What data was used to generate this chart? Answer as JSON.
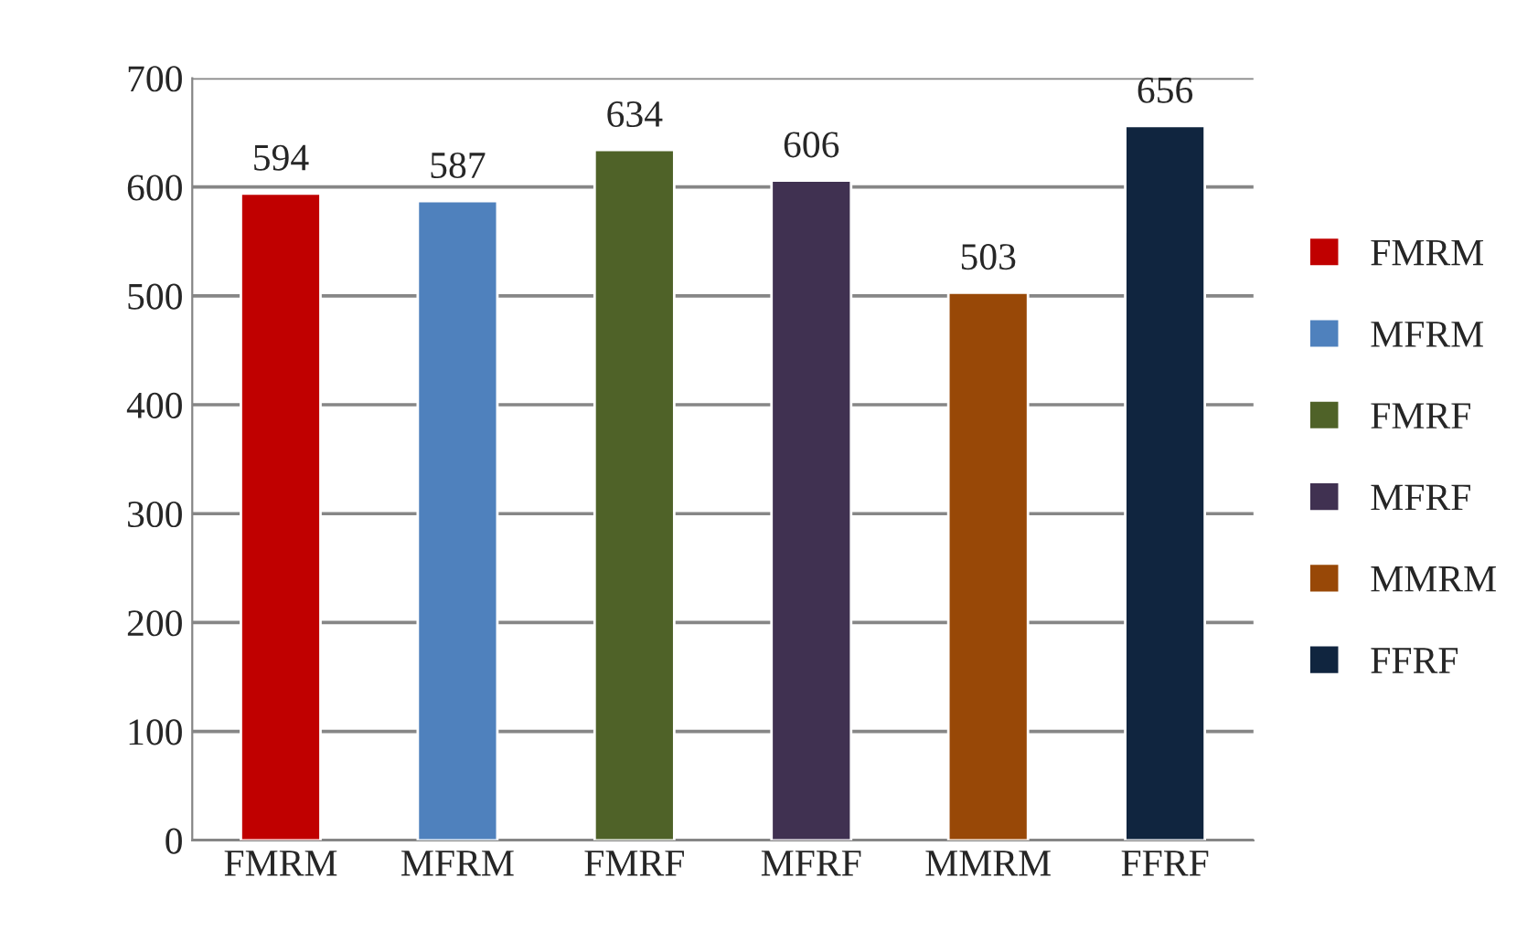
{
  "chart_data": {
    "type": "bar",
    "categories": [
      "FMRM",
      "MFRM",
      "FMRF",
      "MFRF",
      "MMRM",
      "FFRF"
    ],
    "series": [
      {
        "name": "FMRM",
        "color": "#c00000",
        "values": [
          594,
          null,
          null,
          null,
          null,
          null
        ]
      },
      {
        "name": "MFRM",
        "color": "#4f81bd",
        "values": [
          null,
          587,
          null,
          null,
          null,
          null
        ]
      },
      {
        "name": "FMRF",
        "color": "#4f6228",
        "values": [
          null,
          null,
          634,
          null,
          null,
          null
        ]
      },
      {
        "name": "MFRF",
        "color": "#403151",
        "values": [
          null,
          null,
          null,
          606,
          null,
          null
        ]
      },
      {
        "name": "MMRM",
        "color": "#984807",
        "values": [
          null,
          null,
          null,
          null,
          503,
          null
        ]
      },
      {
        "name": "FFRF",
        "color": "#10253f",
        "values": [
          null,
          null,
          null,
          null,
          null,
          656
        ]
      }
    ],
    "ylim": [
      0,
      700
    ],
    "yticks": [
      0,
      100,
      200,
      300,
      400,
      500,
      600,
      700
    ],
    "grid": "y",
    "legend": "right",
    "data_labels": true
  }
}
